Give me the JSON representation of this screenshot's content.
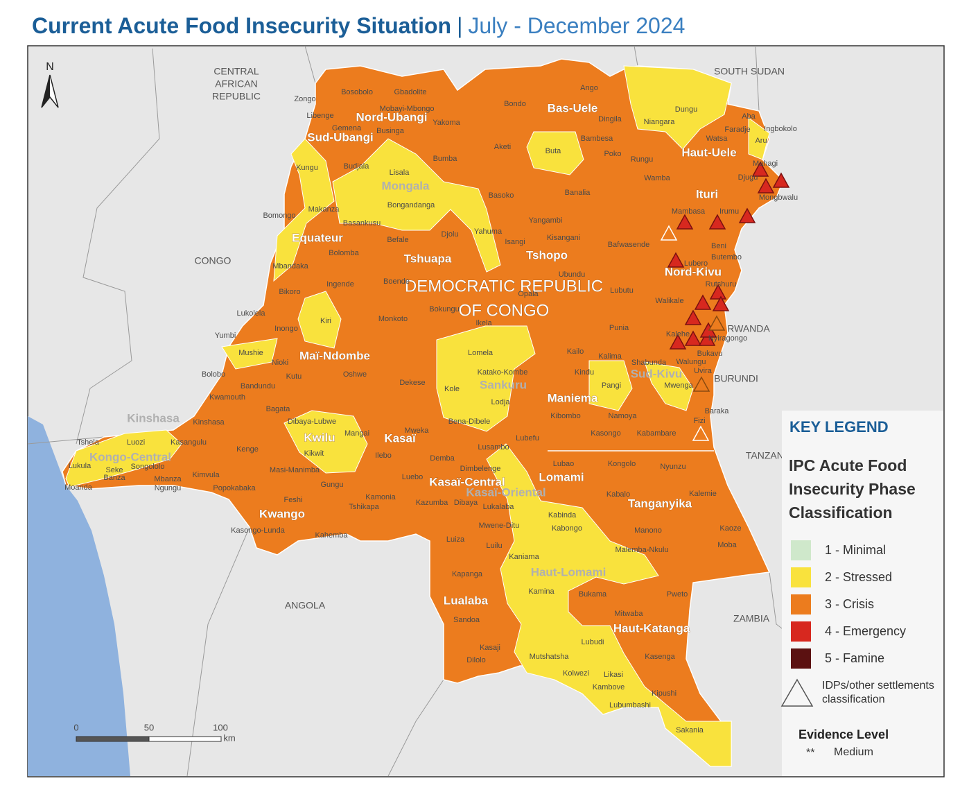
{
  "header": {
    "title": "Current Acute Food Insecurity Situation",
    "separator": "|",
    "subtitle": "July - December 2024"
  },
  "map": {
    "north": "N",
    "countries": [
      "CENTRAL",
      "AFRICAN",
      "REPUBLIC",
      "SOUTH SUDAN",
      "CONGO",
      "RWANDA",
      "BURUNDI",
      "TANZANIA",
      "ANGOLA",
      "ZAMBIA"
    ],
    "country_name": [
      "DEMOCRATIC REPUBLIC",
      "OF CONGO"
    ],
    "provinces": [
      "Nord-Ubangi",
      "Sud-Ubangi",
      "Bas-Uele",
      "Haut-Uele",
      "Ituri",
      "Mongala",
      "Equateur",
      "Tshuapa",
      "Tshopo",
      "Nord-Kivu",
      "Maï-Ndombe",
      "Sankuru",
      "Sud-Kivu",
      "Maniema",
      "Kinshasa",
      "Kwilu",
      "Kasaï",
      "Kongo-Central",
      "Lomami",
      "Kasaï-Central",
      "Kasaï-Oriental",
      "Tanganyika",
      "Kwango",
      "Haut-Lomami",
      "Lualaba",
      "Haut-Katanga"
    ],
    "territories": [
      "Zongo",
      "Bosobolo",
      "Gbadolite",
      "Libenge",
      "Mobayi-Mbongo",
      "Yakoma",
      "Gemena",
      "Businga",
      "Bondo",
      "Ango",
      "Dungu",
      "Aba",
      "Faradje",
      "Ingbokolo",
      "Aru",
      "Watsa",
      "Niangara",
      "Dingila",
      "Bambesa",
      "Aketi",
      "Bumba",
      "Buta",
      "Poko",
      "Rungu",
      "Wamba",
      "Kungu",
      "Budjala",
      "Lisala",
      "Mahagi",
      "Djugu",
      "Mongbwalu",
      "Basoko",
      "Banalia",
      "Bongandanga",
      "Makanza",
      "Bomongo",
      "Basankusu",
      "Mambasa",
      "Irumu",
      "Yangambi",
      "Yahuma",
      "Djolu",
      "Befale",
      "Isangi",
      "Kisangani",
      "Bafwasende",
      "Beni",
      "Bolomba",
      "Butembo",
      "Lubero",
      "Ubundu",
      "Mbandaka",
      "Ingende",
      "Boende",
      "Rutshuru",
      "Bikoro",
      "Opala",
      "Lubutu",
      "Walikale",
      "Bokungu",
      "Lukolela",
      "Monkoto",
      "Kiri",
      "Ikela",
      "Inongo",
      "Punia",
      "Kalehe",
      "Nyiragongo",
      "Yumbi",
      "Kailo",
      "Bukavu",
      "Mushie",
      "Lomela",
      "Kalima",
      "Shabunda",
      "Walungu",
      "Nioki",
      "Kutu",
      "Oshwe",
      "Katako-Kombe",
      "Uvira",
      "Kindu",
      "Bolobo",
      "Dekese",
      "Pangi",
      "Mwenga",
      "Bandundu",
      "Kole",
      "Lodja",
      "Kwamouth",
      "Kibombo",
      "Namoya",
      "Baraka",
      "Bagata",
      "Fizi",
      "Dibaya-Lubwe",
      "Bena-Dibele",
      "Kinshasa",
      "Mweka",
      "Mangai",
      "Kasongo",
      "Kabambare",
      "Lubefu",
      "Tshela",
      "Luozi",
      "Kasangulu",
      "Lusambo",
      "Kenge",
      "Kikwit",
      "Ilebo",
      "Demba",
      "Lubao",
      "Kongolo",
      "Nyunzu",
      "Lukula",
      "Seke",
      "Banza",
      "Songololo",
      "Dimbelenge",
      "Masi-Manimba",
      "Kimvula",
      "Luebo",
      "Mbanza",
      "Ngungu",
      "Gungu",
      "Moanda",
      "Popokabaka",
      "Kabalo",
      "Kalemie",
      "Kamonia",
      "Feshi",
      "Kazumba",
      "Dibaya",
      "Lukalaba",
      "Tshikapa",
      "Kabinda",
      "Mwene-Ditu",
      "Kabongo",
      "Manono",
      "Kaoze",
      "Kasongo-Lunda",
      "Kahemba",
      "Luilu",
      "Luiza",
      "Moba",
      "Malemba-Nkulu",
      "Kaniama",
      "Kapanga",
      "Bukama",
      "Pweto",
      "Kamina",
      "Mitwaba",
      "Sandoa",
      "Lubudi",
      "Kasaji",
      "Mutshatsha",
      "Kasenga",
      "Dilolo",
      "Kolwezi",
      "Likasi",
      "Kambove",
      "Kipushi",
      "Lubumbashi",
      "Sakania"
    ],
    "scale_bar": {
      "ticks": [
        "0",
        "50",
        "100"
      ],
      "unit": "km"
    }
  },
  "legend": {
    "title": "KEY LEGEND",
    "heading_lines": [
      "IPC Acute Food",
      "Insecurity Phase",
      "Classification"
    ],
    "phases": [
      {
        "label": "1 - Minimal",
        "color": "#cfe8cb"
      },
      {
        "label": "2 - Stressed",
        "color": "#f9e23d"
      },
      {
        "label": "3 - Crisis",
        "color": "#ec7c1e"
      },
      {
        "label": "4 - Emergency",
        "color": "#d7281f"
      },
      {
        "label": "5 - Famine",
        "color": "#5b1111"
      }
    ],
    "idp_lines": [
      "IDPs/other settlements",
      "classification"
    ],
    "evidence_title": "Evidence Level",
    "evidence_symbol": "**",
    "evidence_label": "Medium"
  }
}
